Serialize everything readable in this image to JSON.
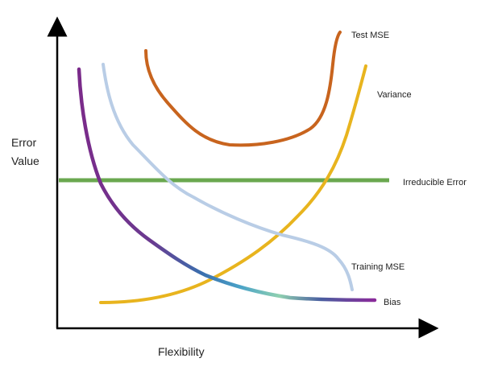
{
  "diagram": {
    "y_axis_label_line1": "Error",
    "y_axis_label_line2": "Value",
    "x_axis_label": "Flexibility",
    "curves": {
      "test_mse": {
        "label": "Test MSE",
        "color": "#c8641e"
      },
      "variance": {
        "label": "Variance",
        "color": "#e8b41e"
      },
      "irreducible_error": {
        "label": "Irreducible Error",
        "color": "#6aa84f"
      },
      "training_mse": {
        "label": "Training MSE",
        "color": "#b9cde6"
      },
      "bias": {
        "label": "Bias",
        "colors": [
          "#7b2a8a",
          "#3a6fae",
          "#5fb7a5",
          "#7b2a8a"
        ]
      }
    },
    "axis_color": "#000000"
  }
}
